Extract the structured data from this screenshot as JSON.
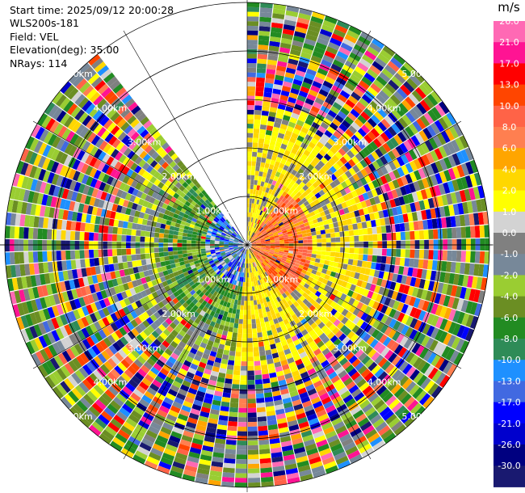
{
  "info": {
    "start_time": "Start time: 2025/09/12 20:00:28",
    "instrument": "WLS200s-181",
    "field": "Field: VEL",
    "elevation": "Elevation(deg): 35.00",
    "nrays": "NRays: 114"
  },
  "chart_data": {
    "type": "heatmap",
    "projection": "polar-ppi",
    "field": "VEL",
    "units": "m/s",
    "elevation_deg": 35.0,
    "n_rays": 114,
    "range_rings_km": [
      1.0,
      2.0,
      3.0,
      4.0,
      5.0
    ],
    "range_ring_labels": [
      "1.00km",
      "2.00km",
      "3.00km",
      "4.00km",
      "5.00km"
    ],
    "max_range_km": 5.0,
    "missing_sector_deg": [
      323,
      360
    ],
    "colorbar": {
      "title": "m/s",
      "ticks": [
        "26.0",
        "21.0",
        "17.0",
        "13.0",
        "10.0",
        "8.0",
        "6.0",
        "4.0",
        "2.0",
        "1.0",
        "0.0",
        "-1.0",
        "-2.0",
        "-4.0",
        "-6.0",
        "-8.0",
        "-10.0",
        "-13.0",
        "-17.0",
        "-21.0",
        "-26.0",
        "-30.0"
      ],
      "colors": [
        "#ff69b4",
        "#ff1493",
        "#ff0000",
        "#ff4500",
        "#ff6347",
        "#ff7f50",
        "#ffa500",
        "#ffd700",
        "#ffff00",
        "#d3d3d3",
        "#808080",
        "#778899",
        "#9acd32",
        "#6b8e23",
        "#228b22",
        "#2e8b57",
        "#1e90ff",
        "#4169e1",
        "#0000ff",
        "#0000cd",
        "#000080",
        "#191970"
      ]
    },
    "velocity_pattern": {
      "toward_sector_deg": [
        200,
        340
      ],
      "toward_values_ms": [
        -1.0,
        -2.0,
        -4.0,
        -6.0,
        -10.0
      ],
      "away_sector_deg": [
        20,
        160
      ],
      "away_values_ms": [
        2.0,
        4.0,
        8.0,
        13.0
      ],
      "outer_range_values": "noisy / mixed"
    }
  }
}
